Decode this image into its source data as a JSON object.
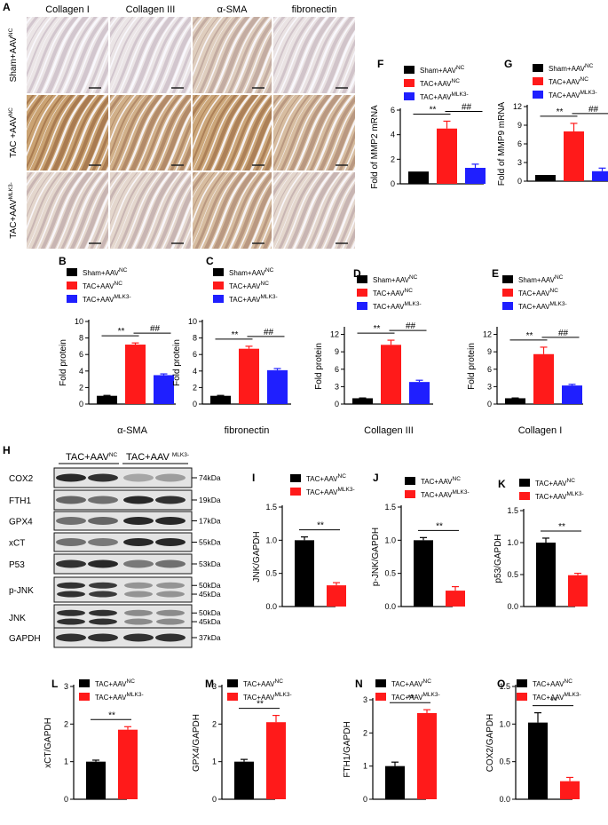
{
  "colors": {
    "black": "#000000",
    "red": "#ff1a1a",
    "blue": "#1f1fff"
  },
  "panelA": {
    "letter": "A",
    "columns": [
      "Collagen I",
      "Collagen III",
      "α-SMA",
      "fibronectin"
    ],
    "rows": [
      {
        "label": "Sham+AAV",
        "sup": "NC"
      },
      {
        "label": "TAC +AAV",
        "sup": "NC"
      },
      {
        "label": "TAC+AAV",
        "sup": "MLK3-"
      }
    ],
    "stain_intensity": [
      [
        0.08,
        0.08,
        0.35,
        0.1
      ],
      [
        0.85,
        0.7,
        0.8,
        0.55
      ],
      [
        0.25,
        0.25,
        0.55,
        0.25
      ]
    ]
  },
  "legend3": [
    {
      "label": "Sham+AAV",
      "sup": "NC",
      "color": "#000000"
    },
    {
      "label": "TAC+AAV",
      "sup": "NC",
      "color": "#ff1a1a"
    },
    {
      "label": "TAC+AAV",
      "sup": "MLK3-",
      "color": "#1f1fff"
    }
  ],
  "legend2": [
    {
      "label": "TAC+AAV",
      "sup": "NC",
      "color": "#000000"
    },
    {
      "label": "TAC+AAV",
      "sup": "MLK3-",
      "color": "#ff1a1a"
    }
  ],
  "panelH": {
    "letter": "H",
    "group1": "TAC+AAV",
    "group1_sup": "NC",
    "group2": "TAC+AAV ",
    "group2_sup": "MLK3-",
    "blots": [
      {
        "name": "COX2",
        "kda": [
          "74kDa"
        ],
        "intensity": [
          0.9,
          0.85,
          0.2,
          0.25
        ]
      },
      {
        "name": "FTH1",
        "kda": [
          "19kDa"
        ],
        "intensity": [
          0.55,
          0.5,
          0.9,
          0.85
        ]
      },
      {
        "name": "GPX4",
        "kda": [
          "17kDa"
        ],
        "intensity": [
          0.5,
          0.55,
          0.9,
          0.9
        ]
      },
      {
        "name": "xCT",
        "kda": [
          "55kDa"
        ],
        "intensity": [
          0.5,
          0.45,
          0.9,
          0.9
        ]
      },
      {
        "name": "P53",
        "kda": [
          "53kDa"
        ],
        "intensity": [
          0.85,
          0.9,
          0.45,
          0.5
        ]
      },
      {
        "name": "p-JNK",
        "kda": [
          "50kDa",
          "45kDa"
        ],
        "intensity": [
          0.85,
          0.8,
          0.3,
          0.3
        ]
      },
      {
        "name": "JNK",
        "kda": [
          "50kDa",
          "45kDa"
        ],
        "intensity": [
          0.85,
          0.85,
          0.35,
          0.35
        ]
      },
      {
        "name": "GAPDH",
        "kda": [
          "37kDa"
        ],
        "intensity": [
          0.85,
          0.85,
          0.85,
          0.85
        ]
      }
    ]
  },
  "chart_data": [
    {
      "id": "B",
      "type": "bar",
      "letter": "B",
      "ylabel": "Fold protein",
      "xlabel": "α-SMA",
      "ylim": [
        0,
        10
      ],
      "yticks": [
        0,
        2,
        4,
        6,
        8,
        10
      ],
      "values": [
        1.0,
        7.2,
        3.5
      ],
      "errors": [
        0.05,
        0.2,
        0.15
      ],
      "sig1": "**",
      "sig2": "##"
    },
    {
      "id": "C",
      "type": "bar",
      "letter": "C",
      "ylabel": "Fold protein",
      "xlabel": "fibronectin",
      "ylim": [
        0,
        10
      ],
      "yticks": [
        0,
        2,
        4,
        6,
        8,
        10
      ],
      "values": [
        1.0,
        6.7,
        4.1
      ],
      "errors": [
        0.05,
        0.3,
        0.2
      ],
      "sig1": "**",
      "sig2": "##"
    },
    {
      "id": "D",
      "type": "bar",
      "letter": "D",
      "ylabel": "Fold protein",
      "xlabel": "Collagen III",
      "ylim": [
        0,
        13
      ],
      "yticks": [
        0,
        3,
        6,
        9,
        12
      ],
      "values": [
        1.0,
        10.2,
        3.8
      ],
      "errors": [
        0.05,
        0.8,
        0.3
      ],
      "sig1": "**",
      "sig2": "##"
    },
    {
      "id": "E",
      "type": "bar",
      "letter": "E",
      "ylabel": "Fold protein",
      "xlabel": "Collagen I",
      "ylim": [
        0,
        13
      ],
      "yticks": [
        0,
        3,
        6,
        9,
        12
      ],
      "values": [
        1.0,
        8.6,
        3.2
      ],
      "errors": [
        0.05,
        1.2,
        0.2
      ],
      "sig1": "**",
      "sig2": "##"
    },
    {
      "id": "F",
      "type": "bar",
      "letter": "F",
      "ylabel": "Fold of MMP2 mRNA",
      "xlabel": "",
      "ylim": [
        0,
        6
      ],
      "yticks": [
        0,
        2,
        4,
        6
      ],
      "values": [
        1.0,
        4.5,
        1.3
      ],
      "errors": [
        0.0,
        0.6,
        0.3
      ],
      "sig1": "**",
      "sig2": "##"
    },
    {
      "id": "G",
      "type": "bar",
      "letter": "G",
      "ylabel": "Fold of MMP9 mRNA",
      "xlabel": "",
      "ylim": [
        0,
        12
      ],
      "yticks": [
        0,
        3,
        6,
        9,
        12
      ],
      "values": [
        1.0,
        8.0,
        1.6
      ],
      "errors": [
        0.0,
        1.3,
        0.5
      ],
      "sig1": "**",
      "sig2": "##"
    },
    {
      "id": "I",
      "type": "bar",
      "letter": "I",
      "ylabel": "JNK/GAPDH",
      "xlabel": "",
      "ylim": [
        0,
        1.5
      ],
      "yticks": [
        0.0,
        0.5,
        1.0,
        1.5
      ],
      "values": [
        1.0,
        0.32
      ],
      "errors": [
        0.05,
        0.04
      ],
      "sig1": "**"
    },
    {
      "id": "J",
      "type": "bar",
      "letter": "J",
      "ylabel": "p-JNK/GAPDH",
      "xlabel": "",
      "ylim": [
        0,
        1.5
      ],
      "yticks": [
        0.0,
        0.5,
        1.0,
        1.5
      ],
      "values": [
        1.0,
        0.24
      ],
      "errors": [
        0.04,
        0.06
      ],
      "sig1": "**"
    },
    {
      "id": "K",
      "type": "bar",
      "letter": "K",
      "ylabel": "p53/GAPDH",
      "xlabel": "",
      "ylim": [
        0,
        1.5
      ],
      "yticks": [
        0.0,
        0.5,
        1.0,
        1.5
      ],
      "values": [
        1.0,
        0.49
      ],
      "errors": [
        0.07,
        0.03
      ],
      "sig1": "**"
    },
    {
      "id": "L",
      "type": "bar",
      "letter": "L",
      "ylabel": "xCT/GAPDH",
      "xlabel": "",
      "ylim": [
        0,
        3
      ],
      "yticks": [
        0,
        1,
        2,
        3
      ],
      "values": [
        1.0,
        1.85
      ],
      "errors": [
        0.04,
        0.08
      ],
      "sig1": "**"
    },
    {
      "id": "M",
      "type": "bar",
      "letter": "M",
      "ylabel": "GPX4/GAPDH",
      "xlabel": "",
      "ylim": [
        0,
        3
      ],
      "yticks": [
        0,
        1,
        2,
        3
      ],
      "values": [
        1.0,
        2.05
      ],
      "errors": [
        0.06,
        0.18
      ],
      "sig1": "**"
    },
    {
      "id": "N",
      "type": "bar",
      "letter": "N",
      "ylabel": "FTH1/GAPDH",
      "xlabel": "",
      "ylim": [
        0,
        3
      ],
      "yticks": [
        0,
        1,
        2,
        3
      ],
      "values": [
        1.0,
        2.6
      ],
      "errors": [
        0.12,
        0.1
      ],
      "sig1": "**"
    },
    {
      "id": "O",
      "type": "bar",
      "letter": "O",
      "ylabel": "COX2/GAPDH",
      "xlabel": "",
      "ylim": [
        0,
        1.5
      ],
      "yticks": [
        0.0,
        0.5,
        1.0,
        1.5
      ],
      "values": [
        1.02,
        0.24
      ],
      "errors": [
        0.13,
        0.05
      ],
      "sig1": "**"
    }
  ]
}
